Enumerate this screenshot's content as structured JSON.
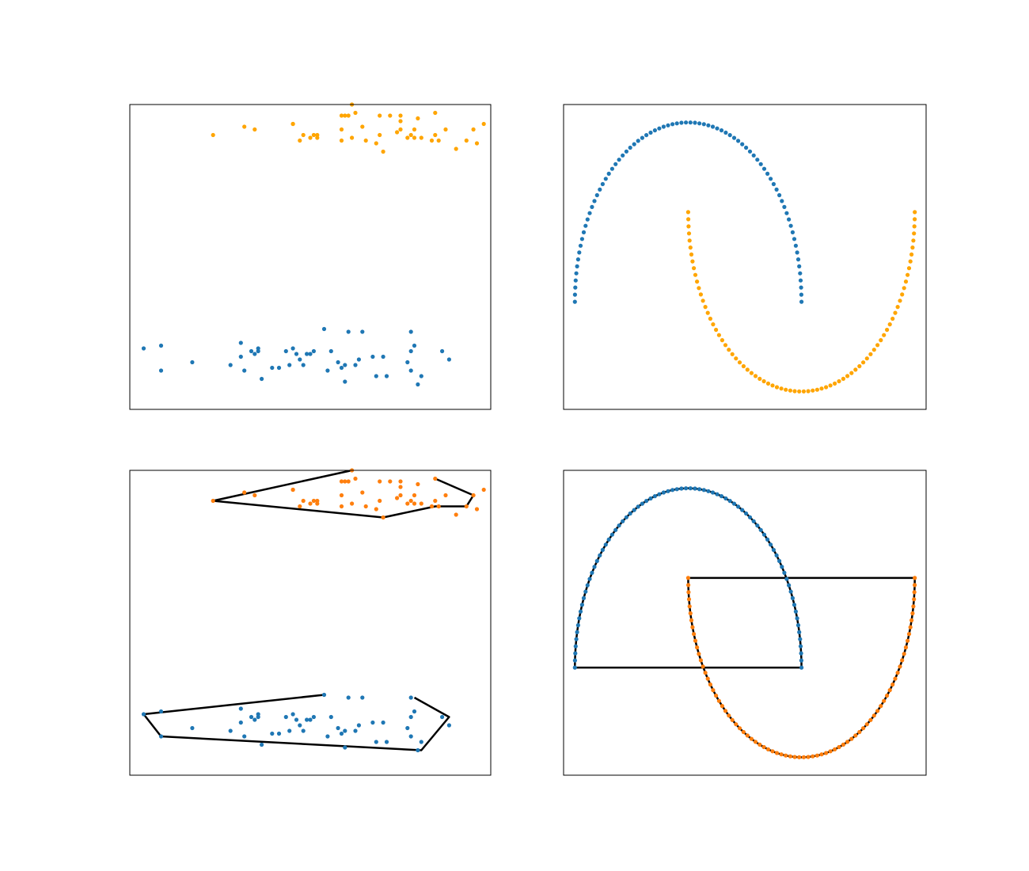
{
  "colors": {
    "blue": "#1f77b4",
    "gold": "#ffa500",
    "orange": "#ff7f0e",
    "hull": "#000000"
  },
  "chart_data": [
    {
      "type": "scatter",
      "panel": "top-left",
      "xlim": [
        -0.2,
        10.2
      ],
      "ylim": [
        -0.5,
        10.5
      ],
      "axis_ticks": "none",
      "series": [
        {
          "color_key": "blue",
          "points": [
            [
              0.2,
              1.7
            ],
            [
              0.7,
              1.8
            ],
            [
              1.6,
              1.2
            ],
            [
              0.7,
              0.9
            ],
            [
              2.7,
              1.1
            ],
            [
              3.0,
              1.4
            ],
            [
              3.0,
              1.9
            ],
            [
              3.1,
              0.9
            ],
            [
              3.3,
              1.6
            ],
            [
              3.4,
              1.5
            ],
            [
              3.5,
              1.7
            ],
            [
              3.5,
              1.6
            ],
            [
              3.6,
              0.6
            ],
            [
              3.9,
              1.0
            ],
            [
              4.1,
              1.0
            ],
            [
              4.3,
              1.6
            ],
            [
              4.5,
              1.7
            ],
            [
              4.4,
              1.1
            ],
            [
              4.6,
              1.5
            ],
            [
              4.7,
              1.3
            ],
            [
              4.8,
              1.1
            ],
            [
              4.9,
              1.5
            ],
            [
              5.0,
              1.5
            ],
            [
              5.1,
              1.6
            ],
            [
              5.4,
              2.4
            ],
            [
              5.5,
              0.9
            ],
            [
              5.6,
              1.6
            ],
            [
              5.8,
              1.2
            ],
            [
              5.9,
              1.0
            ],
            [
              6.0,
              1.1
            ],
            [
              6.0,
              0.5
            ],
            [
              6.1,
              2.3
            ],
            [
              6.3,
              1.1
            ],
            [
              6.4,
              1.3
            ],
            [
              6.5,
              2.3
            ],
            [
              6.8,
              1.4
            ],
            [
              6.9,
              0.7
            ],
            [
              7.1,
              1.4
            ],
            [
              7.2,
              0.7
            ],
            [
              7.8,
              1.2
            ],
            [
              7.9,
              0.9
            ],
            [
              7.9,
              1.6
            ],
            [
              8.0,
              1.8
            ],
            [
              8.1,
              0.4
            ],
            [
              8.2,
              0.7
            ],
            [
              8.8,
              1.6
            ],
            [
              9.0,
              1.3
            ],
            [
              7.9,
              2.3
            ]
          ]
        },
        {
          "color_key": "gold",
          "points": [
            [
              2.2,
              9.4
            ],
            [
              3.1,
              9.7
            ],
            [
              3.4,
              9.6
            ],
            [
              4.5,
              9.8
            ],
            [
              4.5,
              9.8
            ],
            [
              4.7,
              9.2
            ],
            [
              4.8,
              9.4
            ],
            [
              5.0,
              9.3
            ],
            [
              5.1,
              9.4
            ],
            [
              5.2,
              9.3
            ],
            [
              5.2,
              9.4
            ],
            [
              5.9,
              9.2
            ],
            [
              5.9,
              9.6
            ],
            [
              5.9,
              10.1
            ],
            [
              6.0,
              10.1
            ],
            [
              6.1,
              10.1
            ],
            [
              6.2,
              10.5
            ],
            [
              6.3,
              10.2
            ],
            [
              6.2,
              9.3
            ],
            [
              6.5,
              9.7
            ],
            [
              6.6,
              9.2
            ],
            [
              6.9,
              9.1
            ],
            [
              7.0,
              10.1
            ],
            [
              7.0,
              9.4
            ],
            [
              7.1,
              8.8
            ],
            [
              7.3,
              10.1
            ],
            [
              7.5,
              9.5
            ],
            [
              7.6,
              10.1
            ],
            [
              7.6,
              9.9
            ],
            [
              7.6,
              9.6
            ],
            [
              7.8,
              9.3
            ],
            [
              7.9,
              9.4
            ],
            [
              8.0,
              9.6
            ],
            [
              8.0,
              9.3
            ],
            [
              8.1,
              10.0
            ],
            [
              8.2,
              9.3
            ],
            [
              8.6,
              9.4
            ],
            [
              8.6,
              10.2
            ],
            [
              8.7,
              9.2
            ],
            [
              8.9,
              9.6
            ],
            [
              9.2,
              8.9
            ],
            [
              9.5,
              9.2
            ],
            [
              9.7,
              9.6
            ],
            [
              9.8,
              9.1
            ],
            [
              10.0,
              9.8
            ],
            [
              8.5,
              9.2
            ]
          ]
        }
      ]
    },
    {
      "type": "scatter",
      "panel": "top-right",
      "xlim": [
        -1.1,
        2.1
      ],
      "ylim": [
        -0.6,
        1.1
      ],
      "axis_ticks": "none",
      "series": [
        {
          "color_key": "blue",
          "shape": "upper-moon",
          "center": [
            0,
            0
          ],
          "radius": 1,
          "n": 80
        },
        {
          "color_key": "gold",
          "shape": "lower-moon",
          "center": [
            1,
            0.5
          ],
          "radius": 1,
          "n": 80
        }
      ]
    },
    {
      "type": "scatter",
      "panel": "bottom-left",
      "xlim": [
        -0.2,
        10.2
      ],
      "ylim": [
        -0.5,
        10.5
      ],
      "axis_ticks": "none",
      "series_from_panel": "top-left",
      "series_colors": [
        "blue",
        "orange"
      ],
      "hulls": [
        {
          "color_key": "hull",
          "closed": false,
          "vertices": [
            [
              8.0,
              2.3
            ],
            [
              9.0,
              1.6
            ],
            [
              8.2,
              0.4
            ],
            [
              0.7,
              0.9
            ],
            [
              0.2,
              1.7
            ],
            [
              5.4,
              2.4
            ]
          ]
        },
        {
          "color_key": "hull",
          "closed": false,
          "vertices": [
            [
              6.2,
              10.5
            ],
            [
              2.2,
              9.4
            ],
            [
              7.1,
              8.8
            ],
            [
              8.6,
              9.2
            ],
            [
              9.5,
              9.2
            ],
            [
              9.7,
              9.6
            ],
            [
              8.6,
              10.2
            ]
          ]
        }
      ]
    },
    {
      "type": "scatter",
      "panel": "bottom-right",
      "xlim": [
        -1.1,
        2.1
      ],
      "ylim": [
        -0.6,
        1.1
      ],
      "axis_ticks": "none",
      "series_from_panel": "top-right",
      "series_colors": [
        "blue",
        "orange"
      ],
      "hulls": [
        {
          "color_key": "hull",
          "closed": true,
          "shape": "upper-moon-outline",
          "center": [
            0,
            0
          ],
          "radius": 1
        },
        {
          "color_key": "hull",
          "closed": true,
          "shape": "lower-moon-outline",
          "center": [
            1,
            0.5
          ],
          "radius": 1
        }
      ]
    }
  ]
}
